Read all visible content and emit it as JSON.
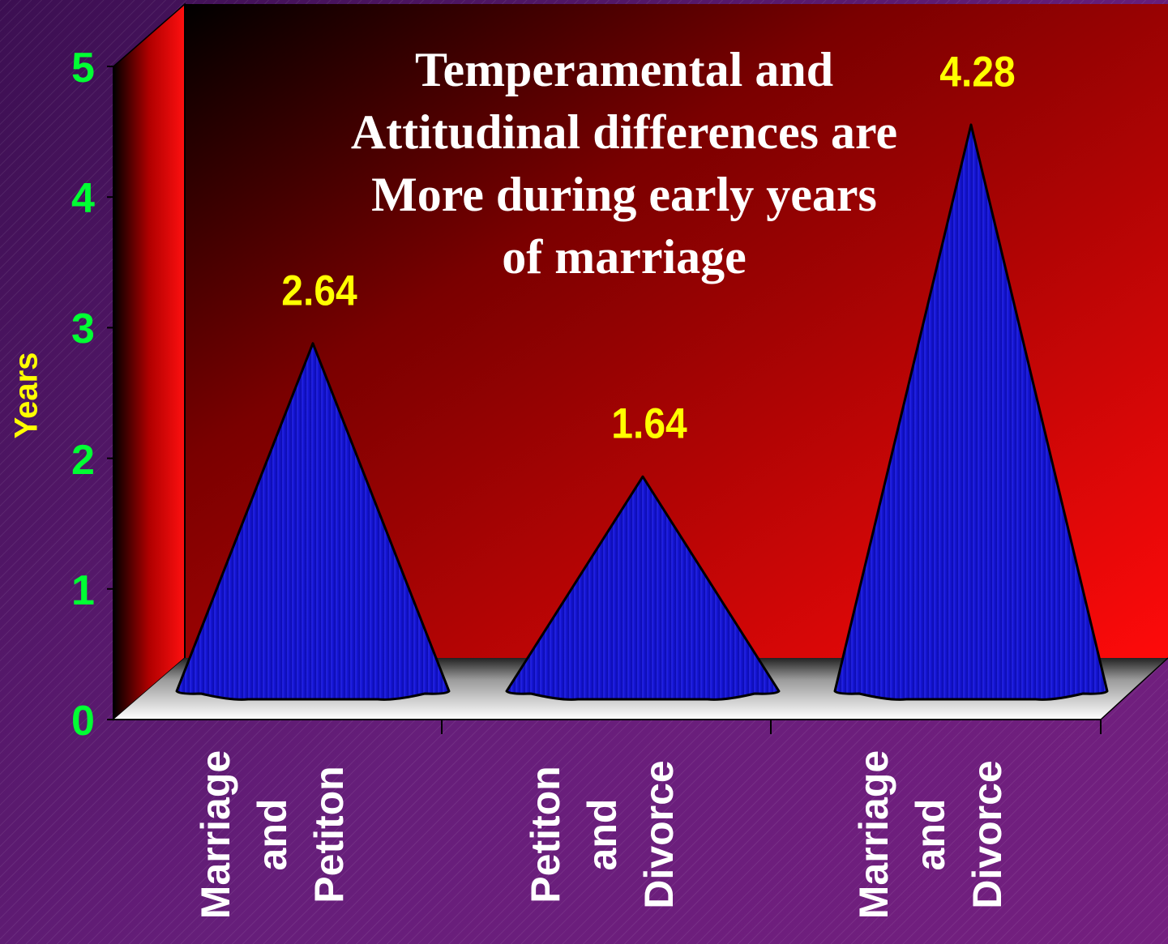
{
  "chart_data": {
    "type": "bar",
    "title": "Temperamental and Attitudinal differences are More during early years of marriage",
    "title_lines": [
      "Temperamental and",
      "Attitudinal differences are",
      "More during early years",
      "of marriage"
    ],
    "ylabel": "Years",
    "ylim": [
      0,
      5
    ],
    "yticks": [
      "0",
      "1",
      "2",
      "3",
      "4",
      "5"
    ],
    "categories": [
      "Marriage and Petiton",
      "Petiton and Divorce",
      "Marriage and Divorce"
    ],
    "category_lines": [
      [
        "Marriage",
        "and",
        "Petiton"
      ],
      [
        "Petiton",
        "and",
        "Divorce"
      ],
      [
        "Marriage",
        "and",
        "Divorce"
      ]
    ],
    "values": [
      2.64,
      1.64,
      4.28
    ],
    "data_labels": [
      "2.64",
      "1.64",
      "4.28"
    ],
    "bar_shape": "cone",
    "grid": false,
    "legend": "none"
  },
  "colors": {
    "cone": "#1a1ae6",
    "data_label": "#ffff00",
    "tick_label": "#00ff33",
    "title": "#ffffff",
    "back_wall": "#e00000"
  }
}
